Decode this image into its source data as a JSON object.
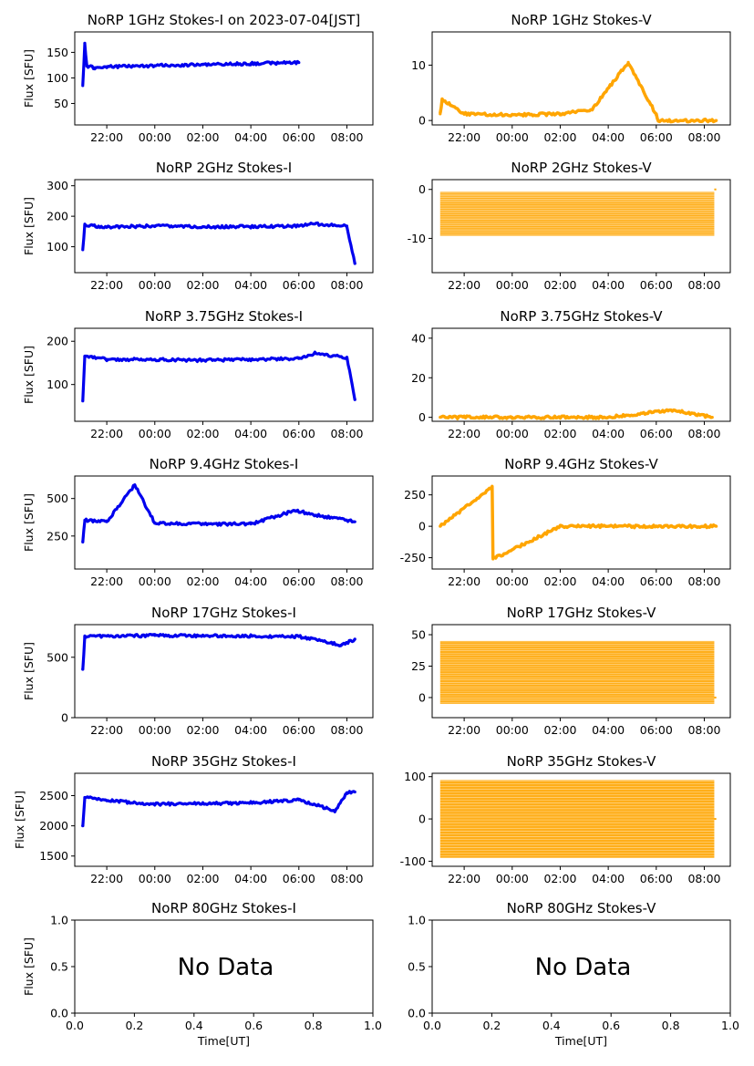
{
  "figure": {
    "ylabel": "Flux [SFU]",
    "xlabel": "Time[UT]",
    "time_ticks": [
      "22:00",
      "00:00",
      "02:00",
      "04:00",
      "06:00",
      "08:00"
    ],
    "colors": {
      "stokes_i": "#0000ee",
      "stokes_v": "#ffa500"
    }
  },
  "chart_data": [
    {
      "type": "scatter",
      "title": "NoRP 1GHz Stokes-I on 2023-07-04[JST]",
      "ylabel": "Flux [SFU]",
      "yticks": [
        50,
        100,
        150
      ],
      "ylim": [
        8,
        190
      ],
      "x": [
        "21:00",
        "21:05",
        "21:10",
        "21:30",
        "22:00",
        "00:00",
        "02:00",
        "04:00",
        "05:00",
        "06:00"
      ],
      "y": [
        85,
        168,
        123,
        120,
        122,
        124,
        126,
        128,
        129,
        130
      ]
    },
    {
      "type": "scatter",
      "title": "NoRP 1GHz Stokes-V",
      "ylabel": "",
      "yticks": [
        0,
        10
      ],
      "ylim": [
        -0.8,
        16
      ],
      "x": [
        "21:00",
        "21:05",
        "22:00",
        "00:00",
        "02:00",
        "03:20",
        "04:50",
        "06:00",
        "06:05",
        "08:30"
      ],
      "y": [
        1.2,
        3.8,
        1.2,
        1.0,
        1.2,
        2.0,
        10.5,
        1.0,
        0,
        0
      ]
    },
    {
      "type": "scatter",
      "title": "NoRP 2GHz Stokes-I",
      "ylabel": "Flux [SFU]",
      "yticks": [
        100,
        200,
        300
      ],
      "ylim": [
        15,
        320
      ],
      "x": [
        "21:00",
        "21:05",
        "22:00",
        "00:00",
        "02:00",
        "04:00",
        "06:00",
        "06:40",
        "08:00",
        "08:20"
      ],
      "y": [
        90,
        170,
        165,
        168,
        165,
        166,
        168,
        175,
        168,
        45
      ]
    },
    {
      "type": "scatter",
      "title": "NoRP 2GHz Stokes-V",
      "ylabel": "",
      "yticks": [
        -10,
        0
      ],
      "ylim": [
        -17,
        2
      ],
      "x": [
        "21:00",
        "08:25",
        "08:30"
      ],
      "y_range": [
        -9.5,
        -0.5
      ],
      "y": [
        -5,
        -5,
        0
      ]
    },
    {
      "type": "scatter",
      "title": "NoRP 3.75GHz Stokes-I",
      "ylabel": "Flux [SFU]",
      "yticks": [
        100,
        200
      ],
      "ylim": [
        15,
        230
      ],
      "x": [
        "21:00",
        "21:05",
        "22:00",
        "00:00",
        "02:00",
        "04:00",
        "06:00",
        "06:40",
        "08:00",
        "08:20"
      ],
      "y": [
        62,
        165,
        158,
        158,
        156,
        158,
        160,
        172,
        162,
        65
      ]
    },
    {
      "type": "scatter",
      "title": "NoRP 3.75GHz Stokes-V",
      "ylabel": "",
      "yticks": [
        0,
        20,
        40
      ],
      "ylim": [
        -2,
        45
      ],
      "x": [
        "21:00",
        "22:00",
        "00:00",
        "02:00",
        "04:00",
        "06:40",
        "08:20"
      ],
      "y": [
        0,
        0,
        0,
        0,
        0,
        3.5,
        0
      ]
    },
    {
      "type": "scatter",
      "title": "NoRP 9.4GHz Stokes-I",
      "ylabel": "Flux [SFU]",
      "yticks": [
        250,
        500
      ],
      "ylim": [
        30,
        650
      ],
      "x": [
        "21:00",
        "21:05",
        "22:00",
        "23:10",
        "00:00",
        "02:00",
        "04:00",
        "05:50",
        "07:00",
        "08:20"
      ],
      "y": [
        210,
        355,
        345,
        590,
        335,
        330,
        330,
        420,
        380,
        345
      ]
    },
    {
      "type": "scatter",
      "title": "NoRP 9.4GHz Stokes-V",
      "ylabel": "",
      "yticks": [
        -250,
        0,
        250
      ],
      "ylim": [
        -340,
        400
      ],
      "x": [
        "21:00",
        "23:10",
        "23:12",
        "02:00",
        "05:50",
        "08:30"
      ],
      "y": [
        0,
        310,
        -260,
        0,
        0,
        0
      ]
    },
    {
      "type": "scatter",
      "title": "NoRP 17GHz Stokes-I",
      "ylabel": "Flux [SFU]",
      "yticks": [
        0,
        500
      ],
      "ylim": [
        0,
        770
      ],
      "x": [
        "21:00",
        "21:05",
        "22:00",
        "00:00",
        "02:00",
        "04:00",
        "06:00",
        "07:45",
        "08:20"
      ],
      "y": [
        400,
        670,
        675,
        680,
        678,
        675,
        672,
        600,
        650
      ]
    },
    {
      "type": "scatter",
      "title": "NoRP 17GHz Stokes-V",
      "ylabel": "",
      "yticks": [
        0,
        25,
        50
      ],
      "ylim": [
        -16,
        58
      ],
      "x": [
        "21:00",
        "08:25",
        "08:30"
      ],
      "y_range": [
        -5,
        45
      ],
      "y": [
        17,
        17,
        0
      ]
    },
    {
      "type": "scatter",
      "title": "NoRP 35GHz Stokes-I",
      "ylabel": "Flux [SFU]",
      "yticks": [
        1500,
        2000,
        2500
      ],
      "ylim": [
        1330,
        2870
      ],
      "x": [
        "21:00",
        "21:05",
        "22:00",
        "00:00",
        "02:00",
        "04:00",
        "06:00",
        "07:30",
        "08:00",
        "08:20"
      ],
      "y": [
        2000,
        2470,
        2420,
        2360,
        2370,
        2380,
        2430,
        2250,
        2550,
        2560
      ]
    },
    {
      "type": "scatter",
      "title": "NoRP 35GHz Stokes-V",
      "ylabel": "",
      "yticks": [
        -100,
        0,
        100
      ],
      "ylim": [
        -112,
        108
      ],
      "x": [
        "21:00",
        "08:25",
        "08:30"
      ],
      "y_range": [
        -92,
        92
      ],
      "y": [
        0,
        0,
        0
      ]
    },
    {
      "type": "scatter",
      "title": "NoRP 80GHz Stokes-I",
      "ylabel": "Flux [SFU]",
      "xlabel": "Time[UT]",
      "xlim": [
        0,
        1
      ],
      "ylim": [
        0,
        1
      ],
      "xticks": [
        "0.0",
        "0.2",
        "0.4",
        "0.6",
        "0.8",
        "1.0"
      ],
      "yticks": [
        "0.0",
        "0.5",
        "1.0"
      ],
      "annotation": "No Data",
      "x": [],
      "y": []
    },
    {
      "type": "scatter",
      "title": "NoRP 80GHz Stokes-V",
      "ylabel": "",
      "xlabel": "Time[UT]",
      "xlim": [
        0,
        1
      ],
      "ylim": [
        0,
        1
      ],
      "xticks": [
        "0.0",
        "0.2",
        "0.4",
        "0.6",
        "0.8",
        "1.0"
      ],
      "yticks": [
        "0.0",
        "0.5",
        "1.0"
      ],
      "annotation": "No Data",
      "x": [],
      "y": []
    }
  ]
}
